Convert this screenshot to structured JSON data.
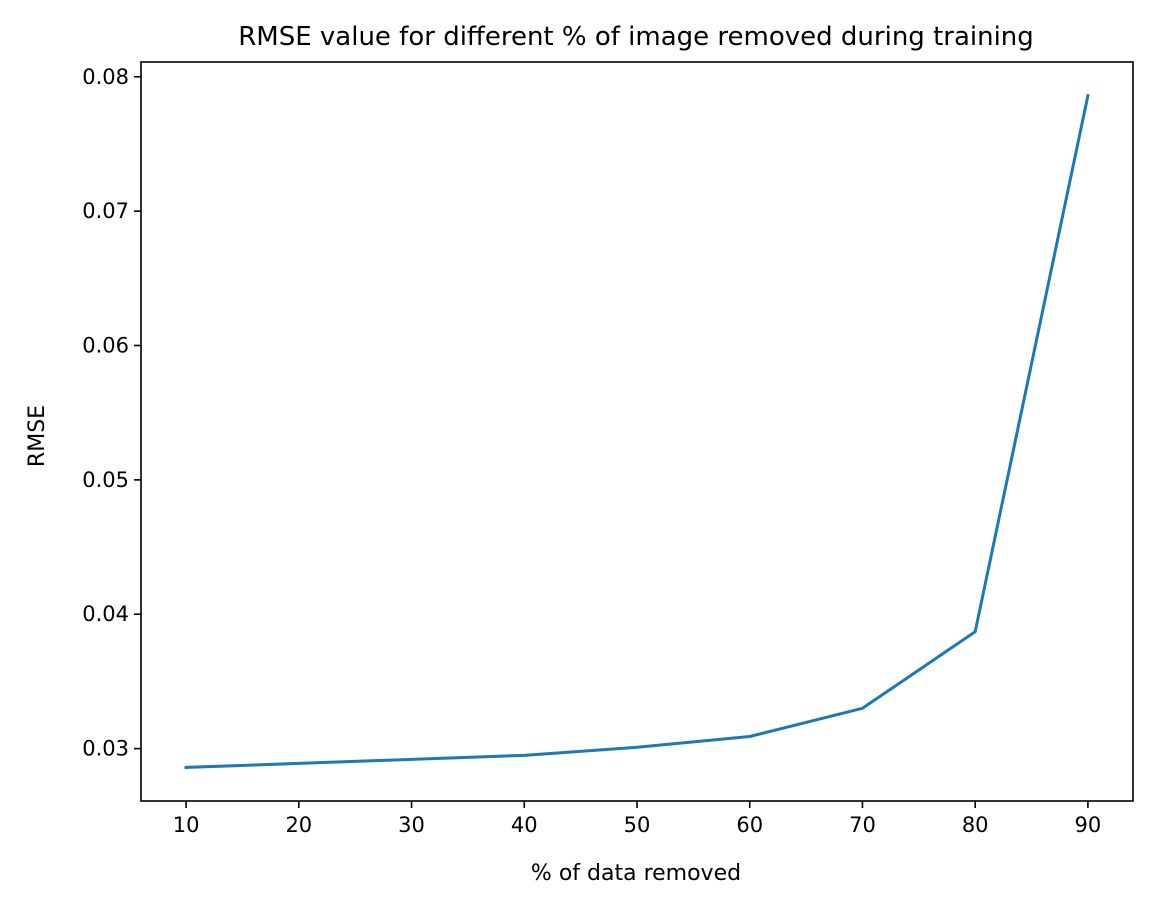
{
  "chart_data": {
    "type": "line",
    "title": "RMSE value for different % of image removed during training",
    "xlabel": "% of data removed",
    "ylabel": "RMSE",
    "x": [
      10,
      20,
      30,
      40,
      50,
      60,
      70,
      80,
      90
    ],
    "series": [
      {
        "values": [
          0.0286,
          0.0289,
          0.0292,
          0.0295,
          0.0301,
          0.0309,
          0.033,
          0.0387,
          0.0786
        ],
        "color": "#1f77b4"
      }
    ],
    "xlim": [
      6,
      94
    ],
    "ylim": [
      0.0261,
      0.0811
    ],
    "xticks": [
      10,
      20,
      30,
      40,
      50,
      60,
      70,
      80,
      90
    ],
    "yticks": [
      0.03,
      0.04,
      0.05,
      0.06,
      0.07,
      0.08
    ],
    "ytick_labels": [
      "0.03",
      "0.04",
      "0.05",
      "0.06",
      "0.07",
      "0.08"
    ],
    "grid": false,
    "legend": false
  }
}
